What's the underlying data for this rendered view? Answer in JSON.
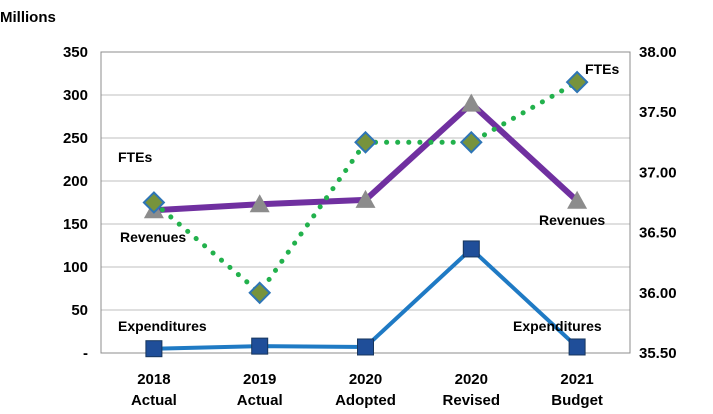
{
  "chart_data": {
    "type": "line",
    "units_label": "Millions",
    "categories": [
      [
        "2018",
        "Actual"
      ],
      [
        "2019",
        "Actual"
      ],
      [
        "2020",
        "Adopted"
      ],
      [
        "2020",
        "Revised"
      ],
      [
        "2021",
        "Budget"
      ]
    ],
    "left_axis": {
      "ylim": [
        0,
        350
      ],
      "ticks": [
        0,
        50,
        100,
        150,
        200,
        250,
        300,
        350
      ],
      "tick_labels": [
        "-",
        "50",
        "100",
        "150",
        "200",
        "250",
        "300",
        "350"
      ]
    },
    "right_axis": {
      "ylim": [
        35.5,
        38.0
      ],
      "ticks": [
        35.5,
        36.0,
        36.5,
        37.0,
        37.5,
        38.0
      ],
      "tick_labels": [
        "35.50",
        "36.00",
        "36.50",
        "37.00",
        "37.50",
        "38.00"
      ]
    },
    "grid": "horizontal",
    "series": [
      {
        "name": "Revenues",
        "axis": "left",
        "values": [
          166,
          173,
          178,
          290,
          177
        ],
        "color": "#7030A0",
        "marker": "triangle",
        "marker_color": "#8C8C8C",
        "line_style": "solid"
      },
      {
        "name": "Expenditures",
        "axis": "left",
        "values": [
          5,
          8,
          7,
          121,
          7
        ],
        "color": "#1F7AC4",
        "marker": "square",
        "marker_color": "#1F4E99",
        "line_style": "solid"
      },
      {
        "name": "FTEs",
        "axis": "right",
        "values": [
          36.75,
          36.0,
          37.25,
          37.25,
          37.75
        ],
        "color": "#22B14C",
        "marker": "diamond",
        "marker_color": "#77933C",
        "line_style": "dotted"
      }
    ],
    "annotations": [
      {
        "text": "FTEs",
        "series": "FTEs"
      },
      {
        "text": "FTEs",
        "series": "FTEs"
      },
      {
        "text": "Revenues",
        "series": "Revenues"
      },
      {
        "text": "Revenues",
        "series": "Revenues"
      },
      {
        "text": "Expenditures",
        "series": "Expenditures"
      },
      {
        "text": "Expenditures",
        "series": "Expenditures"
      }
    ]
  }
}
